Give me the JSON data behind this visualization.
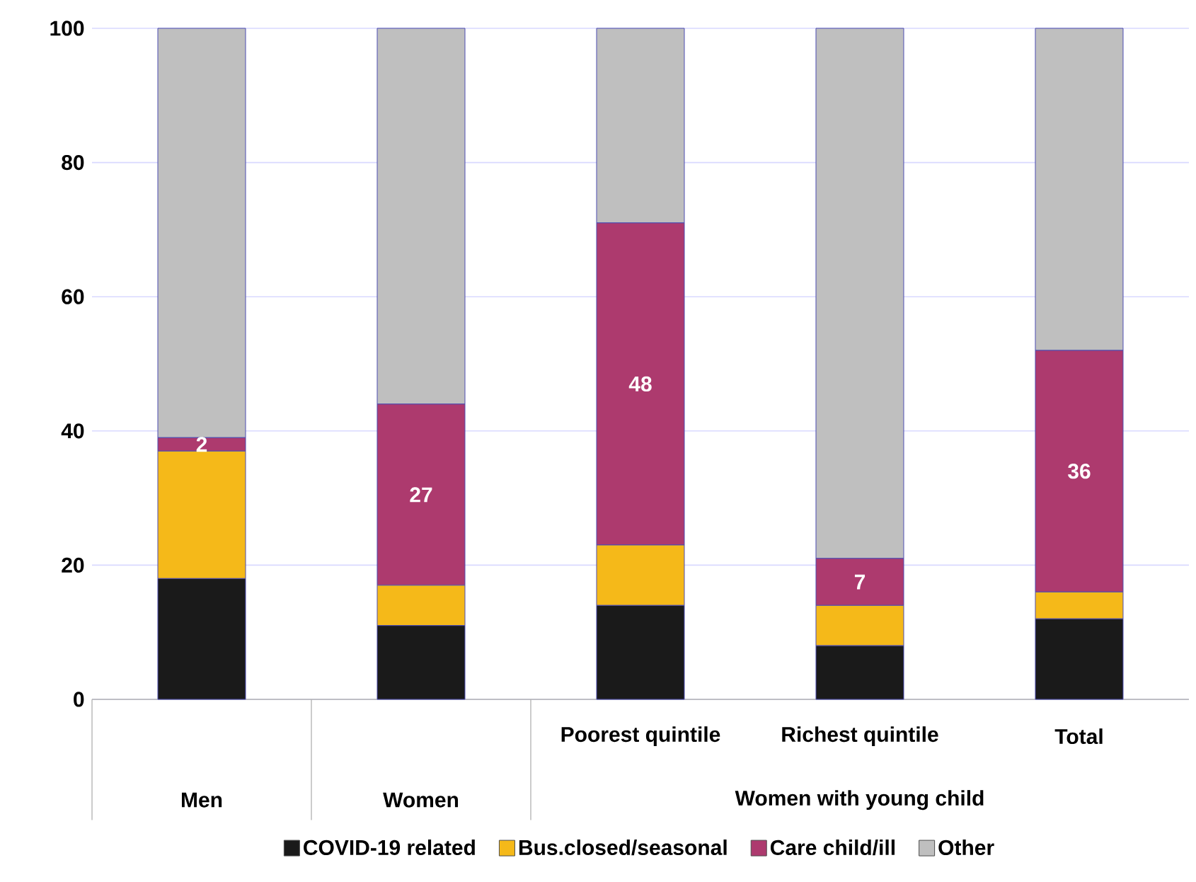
{
  "chart_data": {
    "type": "bar",
    "stacked": true,
    "categories": [
      "Men",
      "Women",
      "Poorest quintile",
      "Richest quintile",
      "Total"
    ],
    "series": [
      {
        "name": "COVID-19 related",
        "color": "#1a1a1a",
        "values": [
          18,
          11,
          14,
          8,
          12
        ]
      },
      {
        "name": "Bus.closed/seasonal",
        "color": "#f5b919",
        "values": [
          19,
          6,
          9,
          6,
          4
        ]
      },
      {
        "name": "Care child/ill",
        "color": "#ad3a6e",
        "values": [
          2,
          27,
          48,
          7,
          36
        ],
        "value_labels": [
          "2",
          "27",
          "48",
          "7",
          "36"
        ]
      },
      {
        "name": "Other",
        "color": "#bfbfbf",
        "values": [
          61,
          56,
          29,
          79,
          48
        ]
      }
    ],
    "ylim": [
      0,
      100
    ],
    "yticks": [
      0,
      20,
      40,
      60,
      80,
      100
    ],
    "grid": "y",
    "legend": "bottom",
    "annotations": [
      "Women with young child"
    ]
  }
}
